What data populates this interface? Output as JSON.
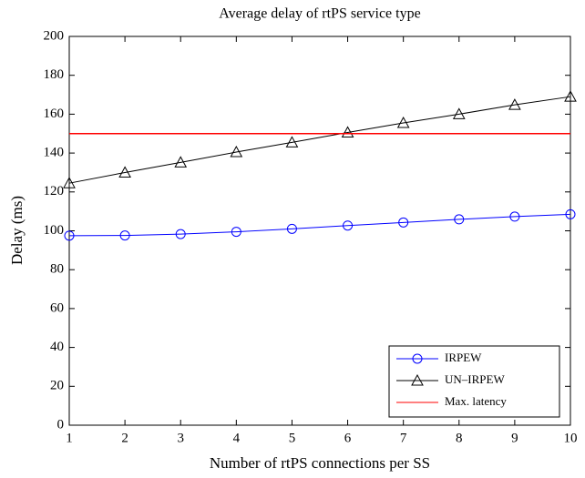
{
  "chart_data": {
    "type": "line",
    "title": "Average delay of rtPS service type",
    "xlabel": "Number of rtPS connections per SS",
    "ylabel": "Delay (ms)",
    "x": [
      1,
      2,
      3,
      4,
      5,
      6,
      7,
      8,
      9,
      10
    ],
    "series": [
      {
        "name": "IRPEW",
        "color": "#0000ff",
        "marker": "circle",
        "values": [
          97.5,
          97.6,
          98.3,
          99.5,
          101,
          102.7,
          104.3,
          105.9,
          107.3,
          108.5
        ]
      },
      {
        "name": "UN–IRPEW",
        "color": "#000000",
        "marker": "triangle",
        "values": [
          124.5,
          130,
          135.2,
          140.5,
          145.5,
          150.6,
          155.5,
          160,
          164.8,
          169
        ]
      },
      {
        "name": "Max. latency",
        "color": "#ff0000",
        "marker": "none",
        "values": [
          150,
          150,
          150,
          150,
          150,
          150,
          150,
          150,
          150,
          150
        ]
      }
    ],
    "xlim": [
      1,
      10
    ],
    "xticks": [
      1,
      2,
      3,
      4,
      5,
      6,
      7,
      8,
      9,
      10
    ],
    "ylim": [
      0,
      200
    ],
    "yticks": [
      0,
      20,
      40,
      60,
      80,
      100,
      120,
      140,
      160,
      180,
      200
    ],
    "grid": false,
    "legend": "lower right"
  }
}
